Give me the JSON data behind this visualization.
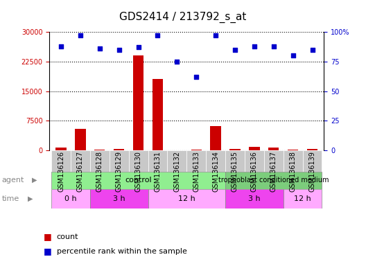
{
  "title": "GDS2414 / 213792_s_at",
  "samples": [
    "GSM136126",
    "GSM136127",
    "GSM136128",
    "GSM136129",
    "GSM136130",
    "GSM136131",
    "GSM136132",
    "GSM136133",
    "GSM136134",
    "GSM136135",
    "GSM136136",
    "GSM136137",
    "GSM136138",
    "GSM136139"
  ],
  "counts": [
    700,
    5500,
    200,
    300,
    24000,
    18000,
    50,
    250,
    6200,
    400,
    800,
    700,
    150,
    300
  ],
  "percentile_ranks": [
    88,
    97,
    86,
    85,
    87,
    97,
    75,
    62,
    97,
    85,
    88,
    88,
    80,
    85
  ],
  "ylim_left": [
    0,
    30000
  ],
  "ylim_right": [
    0,
    100
  ],
  "yticks_left": [
    0,
    7500,
    15000,
    22500,
    30000
  ],
  "yticks_right": [
    0,
    25,
    50,
    75,
    100
  ],
  "ytick_labels_right": [
    "0",
    "25",
    "50",
    "75",
    "100%"
  ],
  "bar_color": "#cc0000",
  "dot_color": "#0000cc",
  "sample_bg_color": "#d0d0d0",
  "agent_groups": [
    {
      "label": "control",
      "xstart": -0.5,
      "xend": 8.5,
      "color": "#90ee90"
    },
    {
      "label": "trophoblast conditioned medium",
      "xstart": 8.5,
      "xend": 13.5,
      "color": "#7ccd7c"
    }
  ],
  "time_groups": [
    {
      "label": "0 h",
      "xstart": -0.5,
      "xend": 1.5,
      "color": "#ffaaff"
    },
    {
      "label": "3 h",
      "xstart": 1.5,
      "xend": 4.5,
      "color": "#ee44ee"
    },
    {
      "label": "12 h",
      "xstart": 4.5,
      "xend": 8.5,
      "color": "#ffaaff"
    },
    {
      "label": "3 h",
      "xstart": 8.5,
      "xend": 11.5,
      "color": "#ee44ee"
    },
    {
      "label": "12 h",
      "xstart": 11.5,
      "xend": 13.5,
      "color": "#ffaaff"
    }
  ],
  "title_fontsize": 11,
  "tick_fontsize": 7,
  "label_fontsize": 8,
  "legend_fontsize": 8
}
